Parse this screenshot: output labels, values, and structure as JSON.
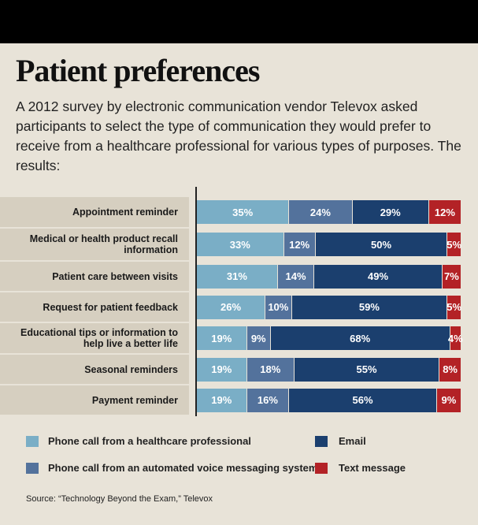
{
  "chart_data": {
    "type": "bar",
    "stacked": true,
    "orientation": "horizontal",
    "title": "Patient preferences",
    "subtitle": "A 2012 survey by electronic communication vendor Televox asked participants to select the type of communication they would prefer to receive from a healthcare professional for various types of purposes. The results:",
    "categories": [
      "Appointment reminder",
      "Medical or health product recall information",
      "Patient care between visits",
      "Request for patient feedback",
      "Educational tips or information to help live a better life",
      "Seasonal reminders",
      "Payment reminder"
    ],
    "series": [
      {
        "name": "Phone call from a healthcare professional",
        "color": "#7aaec6",
        "text_color": "#ffffff",
        "values": [
          35,
          33,
          31,
          26,
          19,
          19,
          19
        ]
      },
      {
        "name": "Phone call from an automated voice messaging system",
        "color": "#53729c",
        "text_color": "#ffffff",
        "values": [
          24,
          12,
          14,
          10,
          9,
          18,
          16
        ]
      },
      {
        "name": "Email",
        "color": "#1b3f6e",
        "text_color": "#ffffff",
        "values": [
          29,
          50,
          49,
          59,
          68,
          55,
          56
        ]
      },
      {
        "name": "Text message",
        "color": "#b32226",
        "text_color": "#ffffff",
        "values": [
          12,
          5,
          7,
          5,
          4,
          8,
          9
        ]
      }
    ],
    "value_suffix": "%",
    "legend_position": "bottom",
    "source": "Source: “Technology Beyond the Exam,” Televox"
  }
}
